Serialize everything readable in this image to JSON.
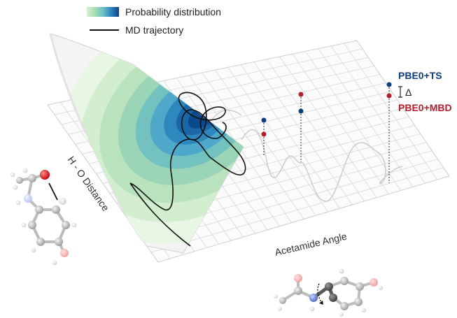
{
  "legend": {
    "probability_label": "Probability distribution",
    "trajectory_label": "MD trajectory",
    "gradient_colors": [
      "#d9f0d3",
      "#a8dcb5",
      "#6cc3c2",
      "#3a9dc8",
      "#1f6fb0",
      "#0b3f86"
    ]
  },
  "axes": {
    "y_label": "H - O Distance",
    "x_label": "Acetamide Angle"
  },
  "methods": {
    "ts_label": "PBE0+TS",
    "mbd_label": "PBE0+MBD",
    "delta_symbol": "Δ",
    "ts_color": "#0d3e7e",
    "mbd_color": "#b41e2e"
  },
  "contour_colors": [
    "#e8f6e4",
    "#d3eecf",
    "#b8e3bd",
    "#99d5b6",
    "#74c2bf",
    "#4ea8c9",
    "#2e87bd",
    "#1b66a6",
    "#0c4a8e"
  ],
  "molecules": {
    "atom_colors": {
      "carbon": "#b8b8b8",
      "oxygen": "#e41a1c",
      "nitrogen": "#5b7bd6",
      "hydrogen": "#f2f2f2"
    }
  }
}
